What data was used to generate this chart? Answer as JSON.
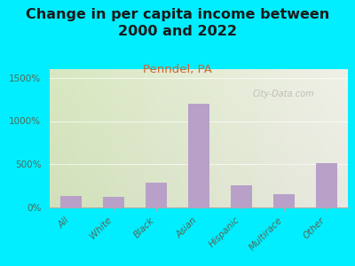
{
  "title": "Change in per capita income between\n2000 and 2022",
  "subtitle": "Penndel, PA",
  "categories": [
    "All",
    "White",
    "Black",
    "Asian",
    "Hispanic",
    "Multirace",
    "Other"
  ],
  "values": [
    130,
    125,
    290,
    1200,
    255,
    155,
    510
  ],
  "bar_color": "#b8a0c8",
  "title_fontsize": 11.5,
  "subtitle_fontsize": 9.5,
  "subtitle_color": "#cc6633",
  "title_color": "#1a1a1a",
  "background_outer": "#00eeff",
  "background_inner_left": "#d8e8c0",
  "background_inner_right": "#f0f0e8",
  "ytick_values": [
    0,
    500,
    1000,
    1500
  ],
  "ytick_labels": [
    "0%",
    "500%",
    "1000%",
    "1500%"
  ],
  "ylim": [
    0,
    1600
  ],
  "tick_color": "#556655",
  "watermark": "City-Data.com"
}
